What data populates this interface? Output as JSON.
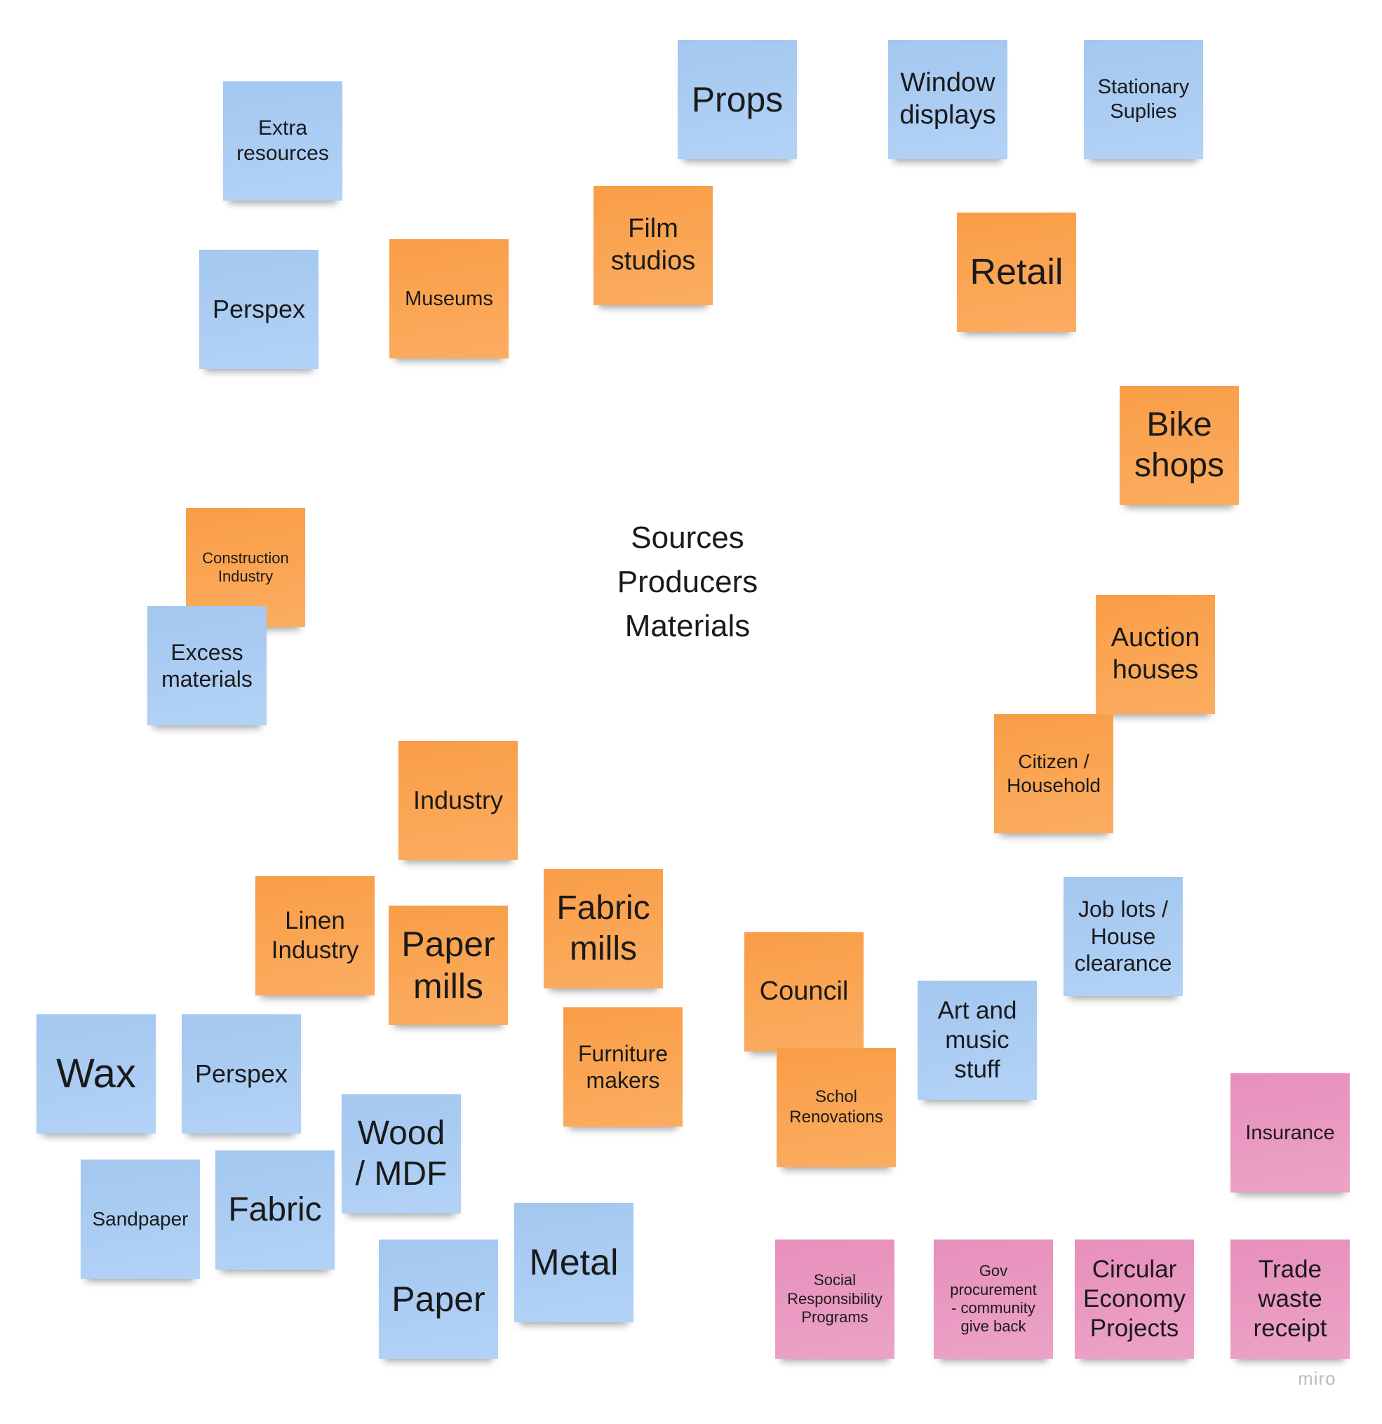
{
  "board": {
    "center_labels": [
      "Sources",
      "Producers",
      "Materials"
    ],
    "watermark": "miro",
    "colors": {
      "blue": "#a9cbf3",
      "orange": "#faa552",
      "pink": "#e999c1"
    },
    "notes": [
      {
        "id": "extra-resources",
        "color": "blue",
        "text": "Extra\nresources"
      },
      {
        "id": "perspex-top",
        "color": "blue",
        "text": "Perspex"
      },
      {
        "id": "museums",
        "color": "orange",
        "text": "Museums"
      },
      {
        "id": "film-studios",
        "color": "orange",
        "text": "Film\nstudios"
      },
      {
        "id": "props",
        "color": "blue",
        "text": "Props"
      },
      {
        "id": "window-displays",
        "color": "blue",
        "text": "Window\ndisplays"
      },
      {
        "id": "stationary-suplies",
        "color": "blue",
        "text": "Stationary\nSuplies"
      },
      {
        "id": "retail",
        "color": "orange",
        "text": "Retail"
      },
      {
        "id": "bike-shops",
        "color": "orange",
        "text": "Bike\nshops"
      },
      {
        "id": "construction-industry",
        "color": "orange",
        "text": "Construction\nIndustry"
      },
      {
        "id": "excess-materials",
        "color": "blue",
        "text": "Excess\nmaterials"
      },
      {
        "id": "auction-houses",
        "color": "orange",
        "text": "Auction\nhouses"
      },
      {
        "id": "citizen-household",
        "color": "orange",
        "text": "Citizen /\nHousehold"
      },
      {
        "id": "industry",
        "color": "orange",
        "text": "Industry"
      },
      {
        "id": "linen-industry",
        "color": "orange",
        "text": "Linen\nIndustry"
      },
      {
        "id": "paper-mills",
        "color": "orange",
        "text": "Paper\nmills"
      },
      {
        "id": "fabric-mills",
        "color": "orange",
        "text": "Fabric\nmills"
      },
      {
        "id": "council",
        "color": "orange",
        "text": "Council"
      },
      {
        "id": "job-lots-house-clearance",
        "color": "blue",
        "text": "Job lots /\nHouse\nclearance"
      },
      {
        "id": "art-and-music-stuff",
        "color": "blue",
        "text": "Art and\nmusic\nstuff"
      },
      {
        "id": "furniture-makers",
        "color": "orange",
        "text": "Furniture\nmakers"
      },
      {
        "id": "schol-renovations",
        "color": "orange",
        "text": "Schol\nRenovations"
      },
      {
        "id": "wax",
        "color": "blue",
        "text": "Wax"
      },
      {
        "id": "perspex-bottom",
        "color": "blue",
        "text": "Perspex"
      },
      {
        "id": "wood-mdf",
        "color": "blue",
        "text": "Wood\n/ MDF"
      },
      {
        "id": "sandpaper",
        "color": "blue",
        "text": "Sandpaper"
      },
      {
        "id": "fabric",
        "color": "blue",
        "text": "Fabric"
      },
      {
        "id": "metal",
        "color": "blue",
        "text": "Metal"
      },
      {
        "id": "paper",
        "color": "blue",
        "text": "Paper"
      },
      {
        "id": "insurance",
        "color": "pink",
        "text": "Insurance"
      },
      {
        "id": "social-responsibility-programs",
        "color": "pink",
        "text": "Social\nResponsibility\nPrograms"
      },
      {
        "id": "gov-procurement",
        "color": "pink",
        "text": "Gov\nprocurement\n- community\ngive back"
      },
      {
        "id": "circular-economy-projects",
        "color": "pink",
        "text": "Circular\nEconomy\nProjects"
      },
      {
        "id": "trade-waste-receipt",
        "color": "pink",
        "text": "Trade\nwaste\nreceipt"
      }
    ]
  }
}
